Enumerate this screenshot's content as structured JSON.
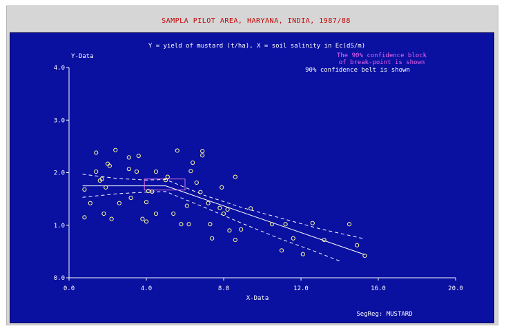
{
  "window": {
    "title": "SAMPLA PILOT AREA, HARYANA, INDIA, 1987/88"
  },
  "chart_data": {
    "type": "scatter",
    "title": "Y = yield of mustard (t/ha), X = soil salinity in Ec(dS/m)",
    "xlabel": "X-Data",
    "ylabel": "Y-Data",
    "xlim": [
      0,
      20
    ],
    "ylim": [
      0,
      4
    ],
    "xticks": [
      0,
      4,
      8,
      12,
      16,
      20
    ],
    "xtick_labels": [
      "0.0",
      "4.0",
      "8.0",
      "12.0",
      "16.0",
      "20.0"
    ],
    "yticks": [
      0,
      1,
      2,
      3,
      4
    ],
    "ytick_labels": [
      "0.0",
      "1.0",
      "2.0",
      "3.0",
      "4.0"
    ],
    "grid": false,
    "annotations": [
      "The 90% confidence block",
      "of break-point is shown",
      "90% confidence belt is shown"
    ],
    "footer": "SegReg: MUSTARD",
    "points": [
      [
        0.8,
        1.15
      ],
      [
        0.8,
        1.68
      ],
      [
        1.1,
        1.42
      ],
      [
        1.4,
        2.38
      ],
      [
        1.4,
        2.02
      ],
      [
        1.6,
        1.85
      ],
      [
        1.7,
        1.88
      ],
      [
        1.8,
        1.22
      ],
      [
        1.9,
        1.72
      ],
      [
        2.0,
        2.17
      ],
      [
        2.1,
        2.13
      ],
      [
        2.2,
        1.12
      ],
      [
        2.4,
        2.43
      ],
      [
        2.6,
        1.42
      ],
      [
        3.1,
        2.29
      ],
      [
        3.1,
        2.07
      ],
      [
        3.2,
        1.52
      ],
      [
        3.5,
        2.02
      ],
      [
        3.6,
        2.32
      ],
      [
        3.8,
        1.12
      ],
      [
        4.0,
        1.07
      ],
      [
        4.0,
        1.44
      ],
      [
        4.1,
        1.65
      ],
      [
        4.3,
        1.64
      ],
      [
        4.5,
        1.22
      ],
      [
        4.5,
        2.02
      ],
      [
        5.0,
        1.86
      ],
      [
        5.1,
        1.92
      ],
      [
        5.4,
        1.22
      ],
      [
        5.6,
        2.42
      ],
      [
        5.8,
        1.02
      ],
      [
        6.1,
        1.37
      ],
      [
        6.2,
        1.02
      ],
      [
        6.3,
        2.03
      ],
      [
        6.4,
        2.19
      ],
      [
        6.6,
        1.81
      ],
      [
        6.8,
        1.63
      ],
      [
        6.9,
        2.33
      ],
      [
        6.9,
        2.41
      ],
      [
        7.2,
        1.42
      ],
      [
        7.3,
        1.02
      ],
      [
        7.4,
        0.75
      ],
      [
        7.8,
        1.33
      ],
      [
        7.9,
        1.72
      ],
      [
        8.0,
        1.22
      ],
      [
        8.2,
        1.3
      ],
      [
        8.3,
        0.9
      ],
      [
        8.6,
        1.92
      ],
      [
        8.6,
        0.72
      ],
      [
        8.9,
        0.92
      ],
      [
        9.4,
        1.32
      ],
      [
        10.5,
        1.02
      ],
      [
        11.0,
        0.52
      ],
      [
        11.2,
        1.02
      ],
      [
        11.6,
        0.75
      ],
      [
        12.1,
        0.45
      ],
      [
        12.6,
        1.04
      ],
      [
        13.2,
        0.72
      ],
      [
        14.5,
        1.02
      ],
      [
        14.9,
        0.62
      ],
      [
        15.3,
        0.42
      ]
    ],
    "series": [
      {
        "name": "",
        "style": "solid",
        "x": [
          0.7,
          5.0,
          15.3
        ],
        "y": [
          1.75,
          1.75,
          0.44
        ]
      },
      {
        "name": "",
        "style": "dashed",
        "x": [
          0.7,
          2.5,
          4.0,
          5.0,
          7.0,
          9.0,
          11.0,
          13.0,
          15.3
        ],
        "y": [
          1.97,
          1.89,
          1.86,
          1.87,
          1.57,
          1.33,
          1.13,
          0.93,
          0.74
        ]
      },
      {
        "name": "",
        "style": "dashed",
        "x": [
          0.7,
          2.5,
          4.0,
          5.0,
          7.0,
          9.0,
          11.0,
          12.6,
          14.0
        ],
        "y": [
          1.53,
          1.6,
          1.63,
          1.64,
          1.34,
          1.03,
          0.73,
          0.52,
          0.32
        ]
      }
    ],
    "breakpoint_block": {
      "x": [
        3.9,
        6.0
      ],
      "y": [
        1.67,
        1.88
      ]
    },
    "colors": {
      "background": "#0a10a0",
      "axes": "#ffffff",
      "points": "#ffff99",
      "lines": "#ffffff",
      "block": "#e070e0",
      "annotation_block": "#ee66ee",
      "title_bar": "#c00000"
    }
  }
}
